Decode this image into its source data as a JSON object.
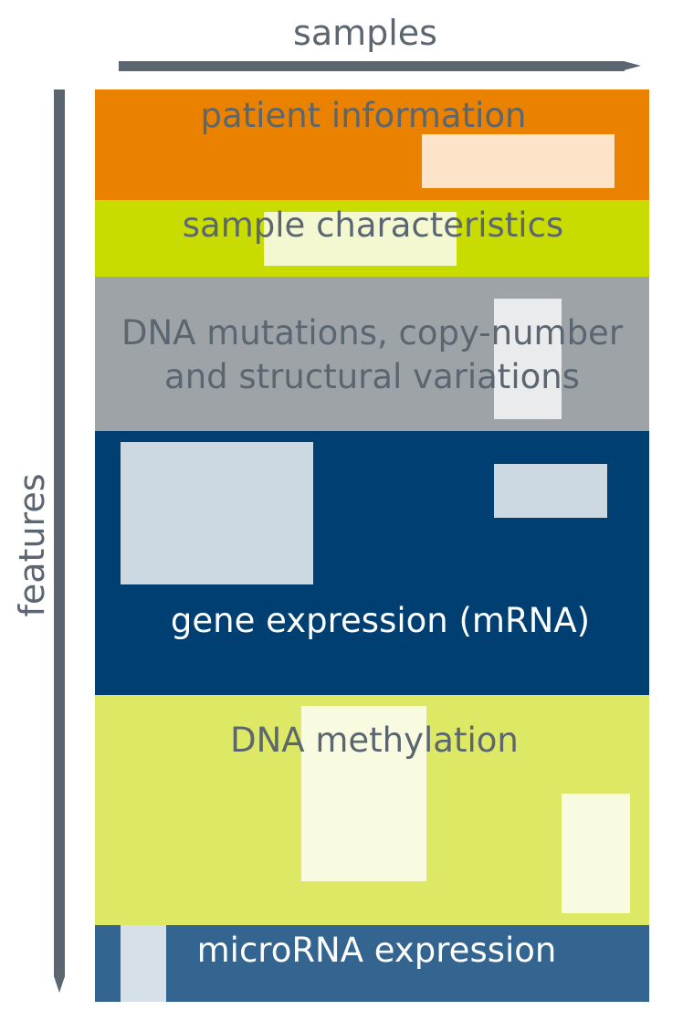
{
  "axes": {
    "horizontal_label": "samples",
    "vertical_label": "features"
  },
  "colors": {
    "axis": "#5b6670",
    "text_dark": "#5b6670",
    "text_light": "#ffffff",
    "patient_information": "#ea8200",
    "sample_characteristics": "#c8dc00",
    "dna_variations": "#9ea3a8",
    "gene_expression": "#003f72",
    "dna_methylation": "#dde864",
    "microrna_expression": "#346590"
  },
  "bands": {
    "patient_information": {
      "label": "patient information"
    },
    "sample_characteristics": {
      "label": "sample characteristics"
    },
    "dna_variations": {
      "label_line1": "DNA mutations, copy-number",
      "label_line2": "and structural variations"
    },
    "gene_expression": {
      "label": "gene expression (mRNA)"
    },
    "dna_methylation": {
      "label": "DNA methylation"
    },
    "microrna_expression": {
      "label": "microRNA expression"
    }
  }
}
